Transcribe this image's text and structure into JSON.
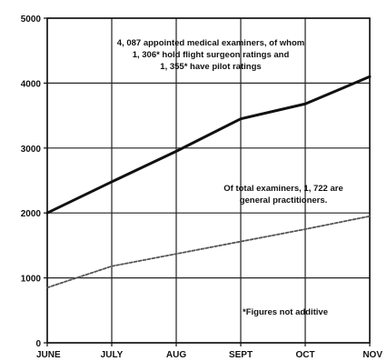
{
  "chart_data": {
    "type": "line",
    "categories": [
      "JUNE",
      "JULY",
      "AUG",
      "SEPT",
      "OCT",
      "NOV"
    ],
    "y_ticks": [
      "0",
      "1000",
      "2000",
      "3000",
      "4000",
      "5000"
    ],
    "ylim": [
      0,
      5000
    ],
    "grid": true,
    "series": [
      {
        "style": "solid",
        "color": "#111111",
        "values": [
          2000,
          2480,
          2950,
          3450,
          3680,
          4100
        ]
      },
      {
        "style": "dashed",
        "color": "#555555",
        "values": [
          850,
          1180,
          1370,
          1560,
          1750,
          1950
        ]
      }
    ],
    "annotations": [
      {
        "id": "top",
        "lines": [
          "4, 087 appointed medical examiners, of whom",
          "1, 306* hold flight surgeon ratings and",
          "1, 355* have pilot ratings"
        ]
      },
      {
        "id": "mid",
        "lines": [
          "Of total examiners, 1, 722 are",
          "general practitioners."
        ]
      },
      {
        "id": "note",
        "lines": [
          "*Figures not additive"
        ]
      }
    ]
  }
}
